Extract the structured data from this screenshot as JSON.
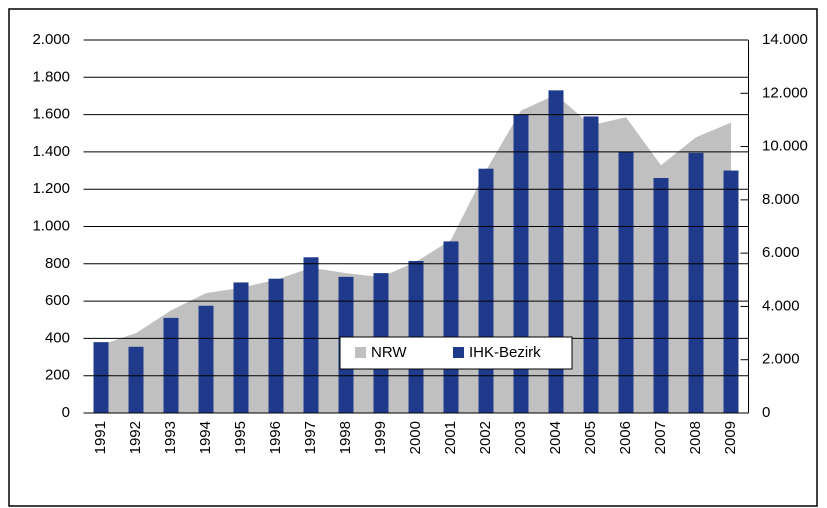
{
  "chart_data": {
    "type": "combo",
    "categories": [
      "1991",
      "1992",
      "1993",
      "1994",
      "1995",
      "1996",
      "1997",
      "1998",
      "1999",
      "2000",
      "2001",
      "2002",
      "2003",
      "2004",
      "2005",
      "2006",
      "2007",
      "2008",
      "2009"
    ],
    "series": [
      {
        "name": "NRW",
        "type": "area",
        "axis": "y2",
        "color": "#c0c0c0",
        "values": [
          2550,
          3000,
          3850,
          4500,
          4700,
          5000,
          5450,
          5250,
          5100,
          5670,
          6500,
          9100,
          11350,
          11950,
          10800,
          11100,
          9300,
          10350,
          10900
        ]
      },
      {
        "name": "IHK-Bezirk",
        "type": "bar",
        "axis": "y",
        "color": "#1f3a8a",
        "values": [
          380,
          355,
          510,
          575,
          700,
          720,
          835,
          730,
          750,
          815,
          920,
          1310,
          1600,
          1730,
          1590,
          1400,
          1260,
          1395,
          1300
        ]
      }
    ],
    "ylim": [
      0,
      2000
    ],
    "yticks": [
      0,
      200,
      400,
      600,
      800,
      {
        "value": 1000,
        "label": "1.000"
      },
      {
        "value": 1200,
        "label": "1.200"
      },
      {
        "value": 1400,
        "label": "1.400"
      },
      {
        "value": 1600,
        "label": "1.600"
      },
      {
        "value": 1800,
        "label": "1.800"
      },
      {
        "value": 2000,
        "label": "2.000"
      }
    ],
    "y2lim": [
      0,
      14000
    ],
    "y2ticks": [
      0,
      {
        "value": 2000,
        "label": "2.000"
      },
      {
        "value": 4000,
        "label": "4.000"
      },
      {
        "value": 6000,
        "label": "6.000"
      },
      {
        "value": 8000,
        "label": "8.000"
      },
      {
        "value": 10000,
        "label": "10.000"
      },
      {
        "value": 12000,
        "label": "12.000"
      },
      {
        "value": 14000,
        "label": "14.000"
      }
    ],
    "grid": true,
    "legend": "center"
  }
}
